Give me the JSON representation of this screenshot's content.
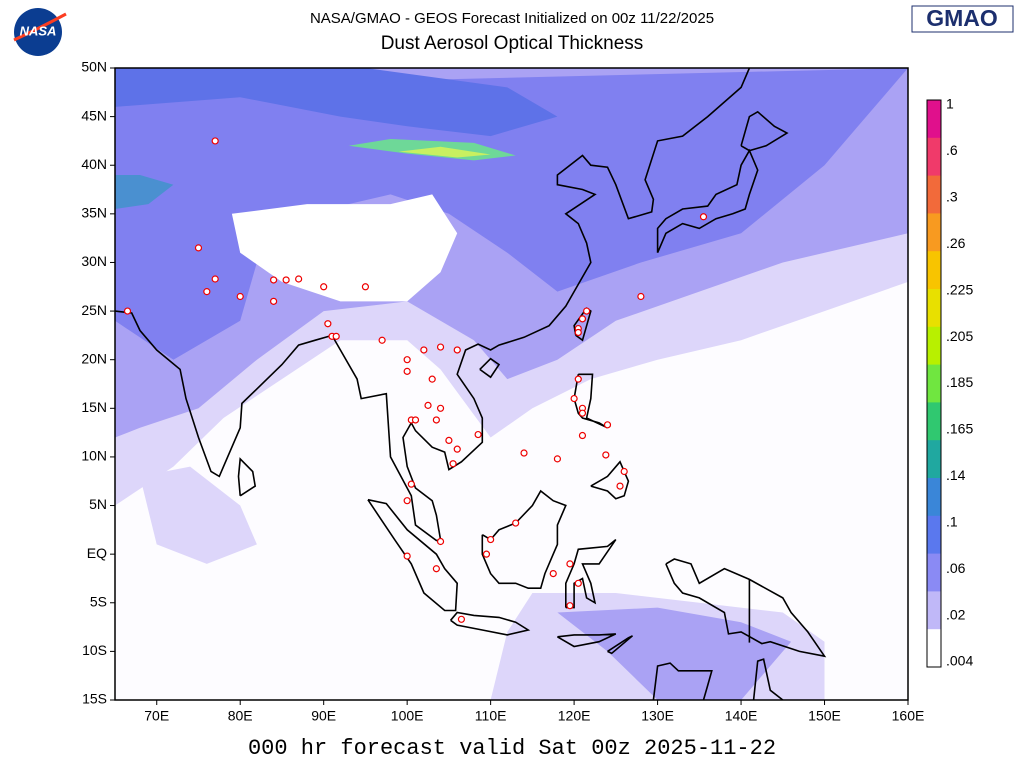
{
  "header": {
    "line1": "NASA/GMAO - GEOS Forecast Initialized on 00z 11/22/2025",
    "title": "Dust Aerosol Optical Thickness"
  },
  "logos": {
    "nasa": "NASA",
    "gmao": "GMAO"
  },
  "map": {
    "lat_labels": [
      "50N",
      "45N",
      "40N",
      "35N",
      "30N",
      "25N",
      "20N",
      "15N",
      "10N",
      "5N",
      "EQ",
      "5S",
      "10S",
      "15S"
    ],
    "lon_labels": [
      "70E",
      "80E",
      "90E",
      "100E",
      "110E",
      "120E",
      "130E",
      "140E",
      "150E",
      "160E"
    ]
  },
  "colorbar": {
    "labels": [
      "1",
      ".6",
      ".3",
      ".26",
      ".225",
      ".205",
      ".185",
      ".165",
      ".14",
      ".1",
      ".06",
      ".02",
      ".004"
    ],
    "colors": [
      "#e0108c",
      "#f03a6a",
      "#f26a3a",
      "#f89a20",
      "#f8c400",
      "#e8e000",
      "#b8f000",
      "#70e640",
      "#30c870",
      "#20a8a0",
      "#3a86d8",
      "#5a78ee",
      "#8a8af4",
      "#c0b8f8",
      "#ffffff"
    ]
  },
  "footer": "000 hr forecast valid Sat 00z 2025-11-22"
}
